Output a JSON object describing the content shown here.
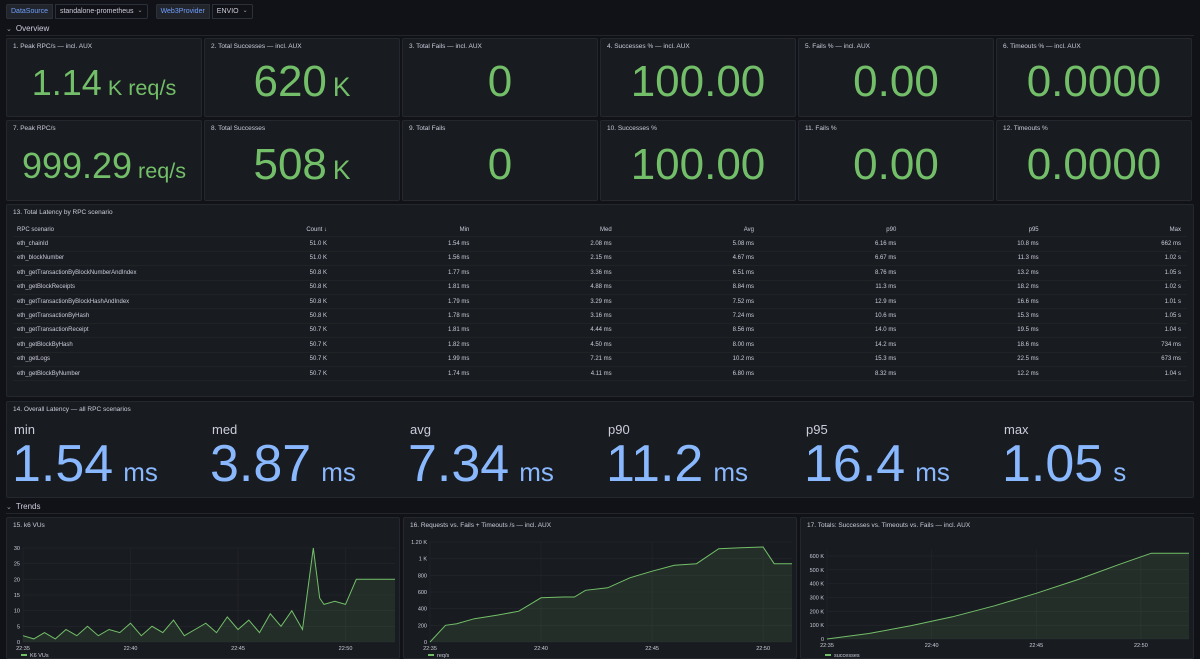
{
  "vars": [
    {
      "label": "DataSource",
      "value": "standalone-prometheus"
    },
    {
      "label": "Web3Provider",
      "value": "ENVIO"
    }
  ],
  "rows": {
    "overview": "Overview",
    "trends": "Trends"
  },
  "stats_top": [
    {
      "title": "1. Peak RPC/s — incl. AUX",
      "value": "1.14",
      "unit": "K req/s"
    },
    {
      "title": "2. Total Successes — incl. AUX",
      "value": "620",
      "unit": "K"
    },
    {
      "title": "3. Total Fails — incl. AUX",
      "value": "0",
      "unit": ""
    },
    {
      "title": "4. Successes % — incl. AUX",
      "value": "100.00",
      "unit": ""
    },
    {
      "title": "5. Fails % — incl. AUX",
      "value": "0.00",
      "unit": ""
    },
    {
      "title": "6. Timeouts % — incl. AUX",
      "value": "0.0000",
      "unit": ""
    }
  ],
  "stats_bottom": [
    {
      "title": "7. Peak RPC/s",
      "value": "999.29",
      "unit": "req/s"
    },
    {
      "title": "8. Total Successes",
      "value": "508",
      "unit": "K"
    },
    {
      "title": "9. Total Fails",
      "value": "0",
      "unit": ""
    },
    {
      "title": "10. Successes %",
      "value": "100.00",
      "unit": ""
    },
    {
      "title": "11. Fails %",
      "value": "0.00",
      "unit": ""
    },
    {
      "title": "12. Timeouts %",
      "value": "0.0000",
      "unit": ""
    }
  ],
  "latency_table": {
    "title": "13. Total Latency by RPC scenario",
    "columns": [
      "RPC scenario",
      "Count",
      "Min",
      "Med",
      "Avg",
      "p90",
      "p95",
      "Max"
    ],
    "sort_icon": "↓",
    "rows": [
      [
        "eth_chainId",
        "51.0 K",
        "1.54 ms",
        "2.08 ms",
        "5.08 ms",
        "6.16 ms",
        "10.8 ms",
        "662 ms"
      ],
      [
        "eth_blockNumber",
        "51.0 K",
        "1.56 ms",
        "2.15 ms",
        "4.67 ms",
        "6.67 ms",
        "11.3 ms",
        "1.02 s"
      ],
      [
        "eth_getTransactionByBlockNumberAndIndex",
        "50.8 K",
        "1.77 ms",
        "3.36 ms",
        "6.51 ms",
        "8.76 ms",
        "13.2 ms",
        "1.05 s"
      ],
      [
        "eth_getBlockReceipts",
        "50.8 K",
        "1.81 ms",
        "4.88 ms",
        "8.84 ms",
        "11.3 ms",
        "18.2 ms",
        "1.02 s"
      ],
      [
        "eth_getTransactionByBlockHashAndIndex",
        "50.8 K",
        "1.79 ms",
        "3.29 ms",
        "7.52 ms",
        "12.9 ms",
        "16.6 ms",
        "1.01 s"
      ],
      [
        "eth_getTransactionByHash",
        "50.8 K",
        "1.78 ms",
        "3.16 ms",
        "7.24 ms",
        "10.6 ms",
        "15.3 ms",
        "1.05 s"
      ],
      [
        "eth_getTransactionReceipt",
        "50.7 K",
        "1.81 ms",
        "4.44 ms",
        "8.56 ms",
        "14.0 ms",
        "19.5 ms",
        "1.04 s"
      ],
      [
        "eth_getBlockByHash",
        "50.7 K",
        "1.82 ms",
        "4.50 ms",
        "8.00 ms",
        "14.2 ms",
        "18.6 ms",
        "734 ms"
      ],
      [
        "eth_getLogs",
        "50.7 K",
        "1.99 ms",
        "7.21 ms",
        "10.2 ms",
        "15.3 ms",
        "22.5 ms",
        "673 ms"
      ],
      [
        "eth_getBlockByNumber",
        "50.7 K",
        "1.74 ms",
        "4.11 ms",
        "6.80 ms",
        "8.32 ms",
        "12.2 ms",
        "1.04 s"
      ]
    ]
  },
  "overall_latency": {
    "title": "14. Overall Latency — all RPC scenarios",
    "items": [
      {
        "label": "min",
        "value": "1.54",
        "unit": "ms"
      },
      {
        "label": "med",
        "value": "3.87",
        "unit": "ms"
      },
      {
        "label": "avg",
        "value": "7.34",
        "unit": "ms"
      },
      {
        "label": "p90",
        "value": "11.2",
        "unit": "ms"
      },
      {
        "label": "p95",
        "value": "16.4",
        "unit": "ms"
      },
      {
        "label": "max",
        "value": "1.05",
        "unit": "s"
      }
    ]
  },
  "colors": {
    "green": "#73bf69",
    "blue": "#8ab8ff",
    "bg": "#111217",
    "panel": "#181b1f"
  },
  "chart_data": [
    {
      "type": "line",
      "title": "15. k6 VUs",
      "legend": "K6 VUs",
      "y_ticks": [
        "0",
        "5",
        "10",
        "15",
        "20",
        "25",
        "30"
      ],
      "ylim": [
        0,
        30
      ],
      "x_ticks": [
        "22:35",
        "22:40",
        "22:45",
        "22:50"
      ],
      "x_tick_pos": [
        0,
        5,
        10,
        15
      ],
      "xlim": [
        0,
        17.3
      ],
      "x": [
        0,
        0.5,
        1,
        1.5,
        2,
        2.5,
        3,
        3.5,
        4,
        4.5,
        5,
        5.5,
        6,
        6.5,
        7,
        7.5,
        8,
        8.5,
        9,
        9.5,
        10,
        10.5,
        11,
        11.5,
        12,
        12.5,
        13,
        13.5,
        13.8,
        14,
        14.5,
        15,
        15.5,
        16,
        16.5,
        17,
        17.3
      ],
      "values": [
        2,
        1,
        3,
        1,
        4,
        2,
        5,
        2,
        4,
        3,
        6,
        2,
        5,
        3,
        7,
        2,
        4,
        6,
        3,
        8,
        4,
        7,
        3,
        9,
        5,
        10,
        4,
        30,
        14,
        12,
        13,
        12,
        20,
        20,
        20,
        20,
        20
      ]
    },
    {
      "type": "area",
      "title": "16. Requests vs. Fails + Timeouts /s — incl. AUX",
      "legend": "req/s",
      "y_ticks": [
        "0",
        "200",
        "400",
        "600",
        "800",
        "1 K",
        "1.20 K"
      ],
      "ylim": [
        0,
        1200
      ],
      "x_ticks": [
        "22:35",
        "22:40",
        "22:45",
        "22:50"
      ],
      "x_tick_pos": [
        0,
        5,
        10,
        15
      ],
      "xlim": [
        0,
        16.3
      ],
      "x": [
        0,
        0.7,
        1.2,
        2,
        3,
        4,
        5,
        6,
        6.5,
        7,
        8,
        9,
        10,
        11,
        12,
        13,
        14,
        15,
        15.5,
        16,
        16.3
      ],
      "values": [
        0,
        200,
        220,
        280,
        320,
        370,
        530,
        540,
        540,
        620,
        650,
        770,
        850,
        920,
        940,
        1120,
        1130,
        1140,
        940,
        940,
        940
      ]
    },
    {
      "type": "line",
      "title": "17. Totals: Successes vs. Timeouts vs. Fails — incl. AUX",
      "legend": "successes",
      "y_ticks": [
        "0",
        "100 K",
        "200 K",
        "300 K",
        "400 K",
        "500 K",
        "600 K"
      ],
      "ylim": [
        0,
        650000
      ],
      "x_ticks": [
        "22:35",
        "22:40",
        "22:45",
        "22:50"
      ],
      "x_tick_pos": [
        0,
        5,
        10,
        15
      ],
      "xlim": [
        0,
        17.3
      ],
      "x": [
        0,
        2,
        4,
        6,
        8,
        10,
        12,
        14,
        15.5,
        17.3
      ],
      "values": [
        0,
        40000,
        95000,
        160000,
        240000,
        330000,
        430000,
        540000,
        620000,
        620000
      ]
    }
  ]
}
